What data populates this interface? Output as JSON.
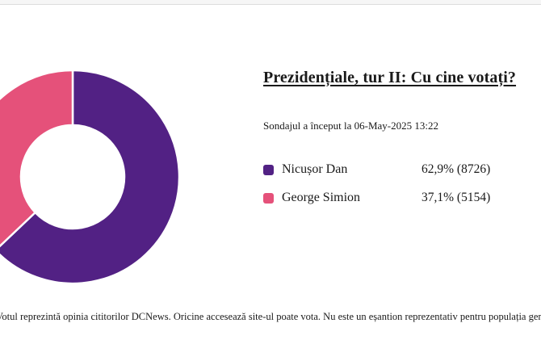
{
  "poll": {
    "title": "Prezidențiale, tur II: Cu cine votați?",
    "subtitle": "Sondajul a început la 06-May-2025 13:22",
    "options": [
      {
        "label": "Nicușor Dan",
        "value_text": "62,9% (8726)",
        "percent": 62.9,
        "votes": 8726,
        "color": "#522184"
      },
      {
        "label": "George Simion",
        "value_text": "37,1% (5154)",
        "percent": 37.1,
        "votes": 5154,
        "color": "#e5517a"
      }
    ],
    "disclaimer": "Votul reprezintă opinia cititorilor DCNews. Oricine accesează site-ul poate vota. Nu este un eșantion reprezentativ pentru populația generală."
  },
  "chart_data": {
    "type": "pie",
    "subtype": "donut",
    "title": "Prezidențiale, tur II: Cu cine votați?",
    "categories": [
      "Nicușor Dan",
      "George Simion"
    ],
    "values": [
      62.9,
      37.1
    ],
    "votes": [
      8726,
      5154
    ],
    "colors": [
      "#522184",
      "#e5517a"
    ],
    "start_angle_deg": 0,
    "direction": "clockwise",
    "slice_border_color": "#ffffff",
    "legend_position": "right",
    "hole": 0.49
  }
}
